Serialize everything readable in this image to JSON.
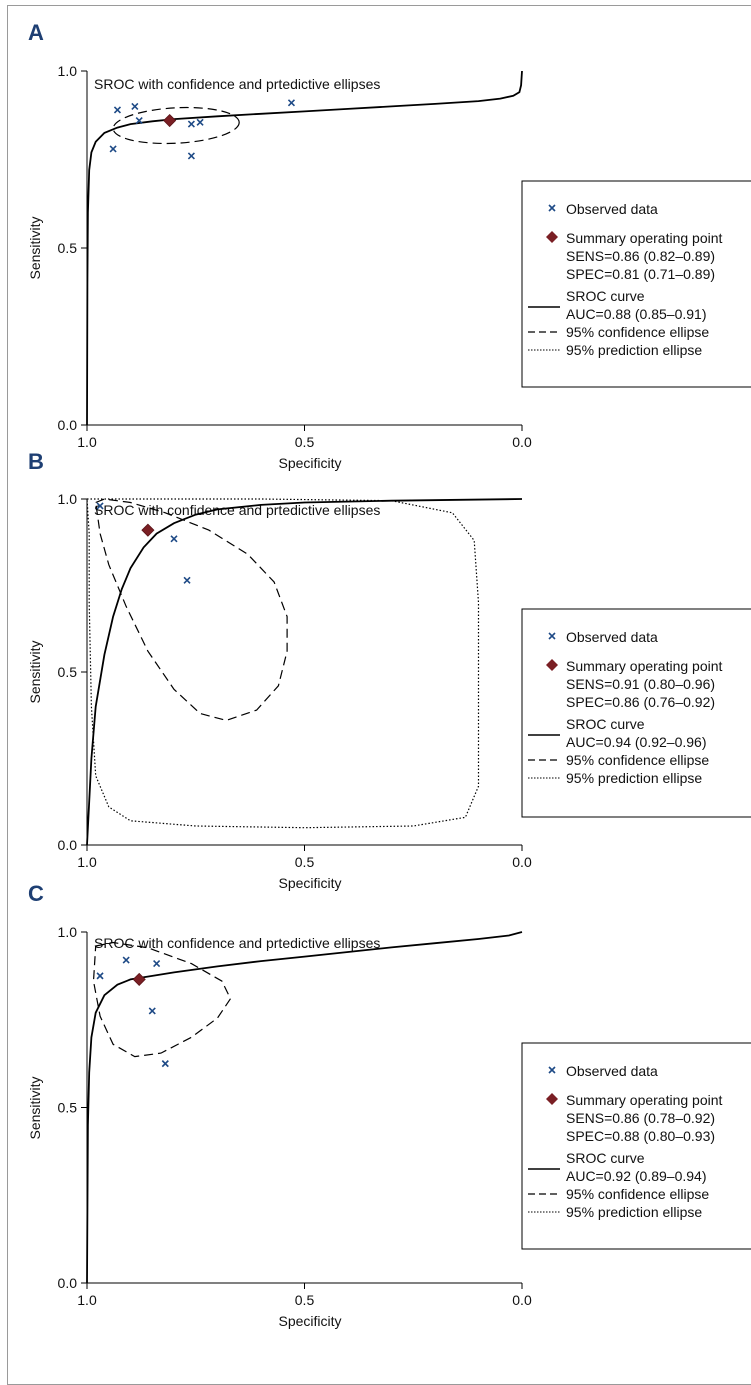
{
  "chart_data": [
    {
      "panel_label": "A",
      "type": "scatter",
      "title": "SROC with confidence and prtedictive ellipses",
      "xlabel": "Specificity",
      "ylabel": "Sensitivity",
      "xlim": [
        1.0,
        0.0
      ],
      "ylim": [
        0.0,
        1.0
      ],
      "x_ticks": [
        "1.0",
        "0.5",
        "0.0"
      ],
      "y_ticks": [
        "0.0",
        "0.5",
        "1.0"
      ],
      "grid": false,
      "legend_position": "right",
      "observed": [
        {
          "spec": 0.94,
          "sens": 0.78
        },
        {
          "spec": 0.93,
          "sens": 0.89
        },
        {
          "spec": 0.89,
          "sens": 0.9
        },
        {
          "spec": 0.88,
          "sens": 0.86
        },
        {
          "spec": 0.76,
          "sens": 0.85
        },
        {
          "spec": 0.74,
          "sens": 0.855
        },
        {
          "spec": 0.76,
          "sens": 0.76
        },
        {
          "spec": 0.53,
          "sens": 0.91
        }
      ],
      "summary_point": {
        "spec": 0.81,
        "sens": 0.86
      },
      "sroc_curve": [
        [
          1.0,
          0.0
        ],
        [
          0.999,
          0.4
        ],
        [
          0.998,
          0.6
        ],
        [
          0.995,
          0.72
        ],
        [
          0.99,
          0.77
        ],
        [
          0.98,
          0.8
        ],
        [
          0.96,
          0.825
        ],
        [
          0.93,
          0.84
        ],
        [
          0.9,
          0.85
        ],
        [
          0.85,
          0.858
        ],
        [
          0.8,
          0.864
        ],
        [
          0.7,
          0.872
        ],
        [
          0.6,
          0.879
        ],
        [
          0.5,
          0.886
        ],
        [
          0.4,
          0.893
        ],
        [
          0.3,
          0.9
        ],
        [
          0.2,
          0.907
        ],
        [
          0.1,
          0.915
        ],
        [
          0.05,
          0.922
        ],
        [
          0.02,
          0.93
        ],
        [
          0.006,
          0.94
        ],
        [
          0.002,
          0.96
        ],
        [
          0.0,
          1.0
        ]
      ],
      "confidence_ellipse": {
        "cx": 0.795,
        "cy": 0.846,
        "rx": 0.145,
        "ry": 0.05,
        "rotate_deg": -3
      },
      "prediction_ellipse": null,
      "legend": {
        "observed": "Observed data",
        "summary": "Summary operating point",
        "sens": "SENS=0.86 (0.82–0.89)",
        "spec": "SPEC=0.81 (0.71–0.89)",
        "sroc": "SROC curve",
        "auc": "AUC=0.88 (0.85–0.91)",
        "conf": "95% confidence ellipse",
        "pred": "95% prediction ellipse"
      }
    },
    {
      "panel_label": "B",
      "type": "scatter",
      "title": "SROC with confidence and prtedictive ellipses",
      "xlabel": "Specificity",
      "ylabel": "Sensitivity",
      "xlim": [
        1.0,
        0.0
      ],
      "ylim": [
        0.0,
        1.0
      ],
      "x_ticks": [
        "1.0",
        "0.5",
        "0.0"
      ],
      "y_ticks": [
        "0.0",
        "0.5",
        "1.0"
      ],
      "grid": false,
      "legend_position": "right",
      "observed": [
        {
          "spec": 0.97,
          "sens": 0.98
        },
        {
          "spec": 0.86,
          "sens": 0.91
        },
        {
          "spec": 0.8,
          "sens": 0.885
        },
        {
          "spec": 0.77,
          "sens": 0.765
        }
      ],
      "summary_point": {
        "spec": 0.86,
        "sens": 0.91
      },
      "sroc_curve": [
        [
          1.0,
          0.0
        ],
        [
          0.99,
          0.25
        ],
        [
          0.98,
          0.4
        ],
        [
          0.96,
          0.55
        ],
        [
          0.94,
          0.66
        ],
        [
          0.92,
          0.74
        ],
        [
          0.9,
          0.8
        ],
        [
          0.87,
          0.86
        ],
        [
          0.84,
          0.9
        ],
        [
          0.8,
          0.93
        ],
        [
          0.75,
          0.955
        ],
        [
          0.7,
          0.97
        ],
        [
          0.6,
          0.983
        ],
        [
          0.5,
          0.99
        ],
        [
          0.3,
          0.995
        ],
        [
          0.0,
          1.0
        ]
      ],
      "confidence_region": [
        [
          0.98,
          0.99
        ],
        [
          0.96,
          1.0
        ],
        [
          0.9,
          0.99
        ],
        [
          0.82,
          0.96
        ],
        [
          0.72,
          0.91
        ],
        [
          0.63,
          0.84
        ],
        [
          0.57,
          0.76
        ],
        [
          0.54,
          0.66
        ],
        [
          0.54,
          0.56
        ],
        [
          0.56,
          0.46
        ],
        [
          0.61,
          0.39
        ],
        [
          0.68,
          0.36
        ],
        [
          0.74,
          0.38
        ],
        [
          0.8,
          0.45
        ],
        [
          0.86,
          0.56
        ],
        [
          0.91,
          0.69
        ],
        [
          0.95,
          0.81
        ],
        [
          0.97,
          0.9
        ],
        [
          0.98,
          0.99
        ]
      ],
      "prediction_region": [
        [
          1.0,
          1.0
        ],
        [
          0.6,
          1.0
        ],
        [
          0.3,
          0.995
        ],
        [
          0.16,
          0.96
        ],
        [
          0.11,
          0.88
        ],
        [
          0.1,
          0.7
        ],
        [
          0.1,
          0.4
        ],
        [
          0.1,
          0.17
        ],
        [
          0.13,
          0.08
        ],
        [
          0.25,
          0.055
        ],
        [
          0.5,
          0.05
        ],
        [
          0.75,
          0.055
        ],
        [
          0.9,
          0.07
        ],
        [
          0.95,
          0.11
        ],
        [
          0.98,
          0.2
        ],
        [
          0.99,
          0.4
        ],
        [
          0.995,
          0.7
        ],
        [
          0.995,
          0.9
        ],
        [
          1.0,
          1.0
        ]
      ],
      "legend": {
        "observed": "Observed data",
        "summary": "Summary operating point",
        "sens": "SENS=0.91 (0.80–0.96)",
        "spec": "SPEC=0.86 (0.76–0.92)",
        "sroc": "SROC curve",
        "auc": "AUC=0.94 (0.92–0.96)",
        "conf": "95% confidence ellipse",
        "pred": "95% prediction ellipse"
      }
    },
    {
      "panel_label": "C",
      "type": "scatter",
      "title": "SROC with confidence and prtedictive ellipses",
      "xlabel": "Specificity",
      "ylabel": "Sensitivity",
      "xlim": [
        1.0,
        0.0
      ],
      "ylim": [
        0.0,
        1.0
      ],
      "x_ticks": [
        "1.0",
        "0.5",
        "0.0"
      ],
      "y_ticks": [
        "0.0",
        "0.5",
        "1.0"
      ],
      "grid": false,
      "legend_position": "right",
      "observed": [
        {
          "spec": 0.97,
          "sens": 0.875
        },
        {
          "spec": 0.91,
          "sens": 0.92
        },
        {
          "spec": 0.88,
          "sens": 0.865
        },
        {
          "spec": 0.84,
          "sens": 0.91
        },
        {
          "spec": 0.85,
          "sens": 0.775
        },
        {
          "spec": 0.82,
          "sens": 0.625
        }
      ],
      "summary_point": {
        "spec": 0.88,
        "sens": 0.865
      },
      "sroc_curve": [
        [
          1.0,
          0.0
        ],
        [
          0.998,
          0.45
        ],
        [
          0.995,
          0.6
        ],
        [
          0.99,
          0.7
        ],
        [
          0.98,
          0.77
        ],
        [
          0.96,
          0.82
        ],
        [
          0.93,
          0.85
        ],
        [
          0.9,
          0.865
        ],
        [
          0.85,
          0.875
        ],
        [
          0.8,
          0.885
        ],
        [
          0.7,
          0.902
        ],
        [
          0.6,
          0.917
        ],
        [
          0.5,
          0.93
        ],
        [
          0.4,
          0.943
        ],
        [
          0.3,
          0.956
        ],
        [
          0.2,
          0.968
        ],
        [
          0.1,
          0.98
        ],
        [
          0.03,
          0.99
        ],
        [
          0.0,
          1.0
        ]
      ],
      "confidence_region": [
        [
          0.98,
          0.96
        ],
        [
          0.94,
          0.97
        ],
        [
          0.86,
          0.955
        ],
        [
          0.76,
          0.91
        ],
        [
          0.69,
          0.86
        ],
        [
          0.67,
          0.81
        ],
        [
          0.7,
          0.755
        ],
        [
          0.76,
          0.7
        ],
        [
          0.83,
          0.655
        ],
        [
          0.89,
          0.645
        ],
        [
          0.94,
          0.68
        ],
        [
          0.97,
          0.76
        ],
        [
          0.985,
          0.86
        ],
        [
          0.98,
          0.96
        ]
      ],
      "prediction_region": null,
      "legend": {
        "observed": "Observed data",
        "summary": "Summary operating point",
        "sens": "SENS=0.86 (0.78–0.92)",
        "spec": "SPEC=0.88 (0.80–0.93)",
        "sroc": "SROC curve",
        "auc": "AUC=0.92 (0.89–0.94)",
        "conf": "95% confidence ellipse",
        "pred": "95% prediction ellipse"
      }
    }
  ],
  "colors": {
    "observed_marker": "#1e4a86",
    "summary_marker": "#7a1f24",
    "panel_label": "#1e3f73",
    "line": "#000000"
  }
}
